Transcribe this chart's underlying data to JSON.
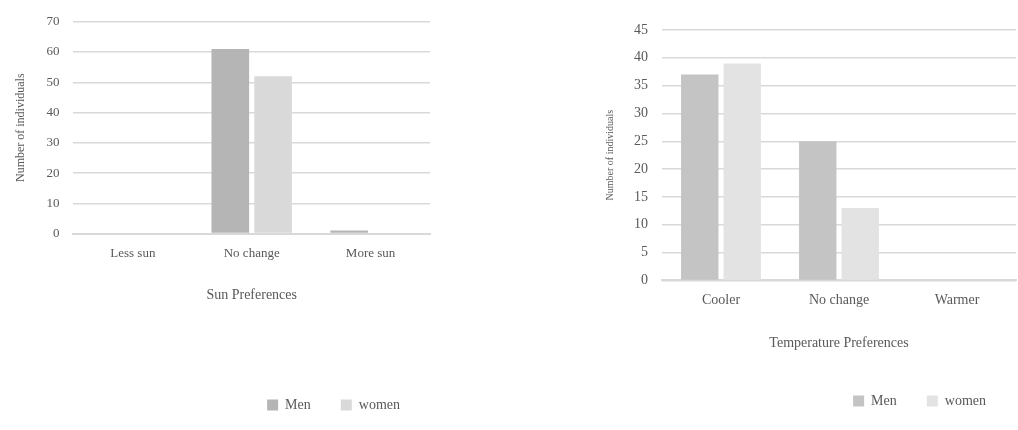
{
  "chart_data": [
    {
      "type": "bar",
      "xlabel": "Sun Preferences",
      "ylabel": "Number of individuals",
      "categories": [
        "Less sun",
        "No change",
        "More sun"
      ],
      "series": [
        {
          "name": "Men",
          "color": "#b5b5b5",
          "values": [
            0,
            61,
            1
          ]
        },
        {
          "name": "women",
          "color": "#d9d9d9",
          "values": [
            0,
            52,
            0
          ]
        }
      ],
      "ylim": [
        0,
        70
      ],
      "yticks": [
        0,
        10,
        20,
        30,
        40,
        50,
        60,
        70
      ],
      "grid": "y",
      "legend": "bottom right"
    },
    {
      "type": "bar",
      "xlabel": "Temperature Preferences",
      "ylabel": "Number of individuals",
      "categories": [
        "Cooler",
        "No change",
        "Warmer"
      ],
      "series": [
        {
          "name": "Men",
          "color": "#c4c4c4",
          "values": [
            37,
            25,
            0
          ]
        },
        {
          "name": "women",
          "color": "#e3e3e3",
          "values": [
            39,
            13,
            0
          ]
        }
      ],
      "ylim": [
        0,
        45
      ],
      "yticks": [
        0,
        5,
        10,
        15,
        20,
        25,
        30,
        35,
        40,
        45
      ],
      "grid": "y",
      "legend": "bottom right"
    }
  ]
}
